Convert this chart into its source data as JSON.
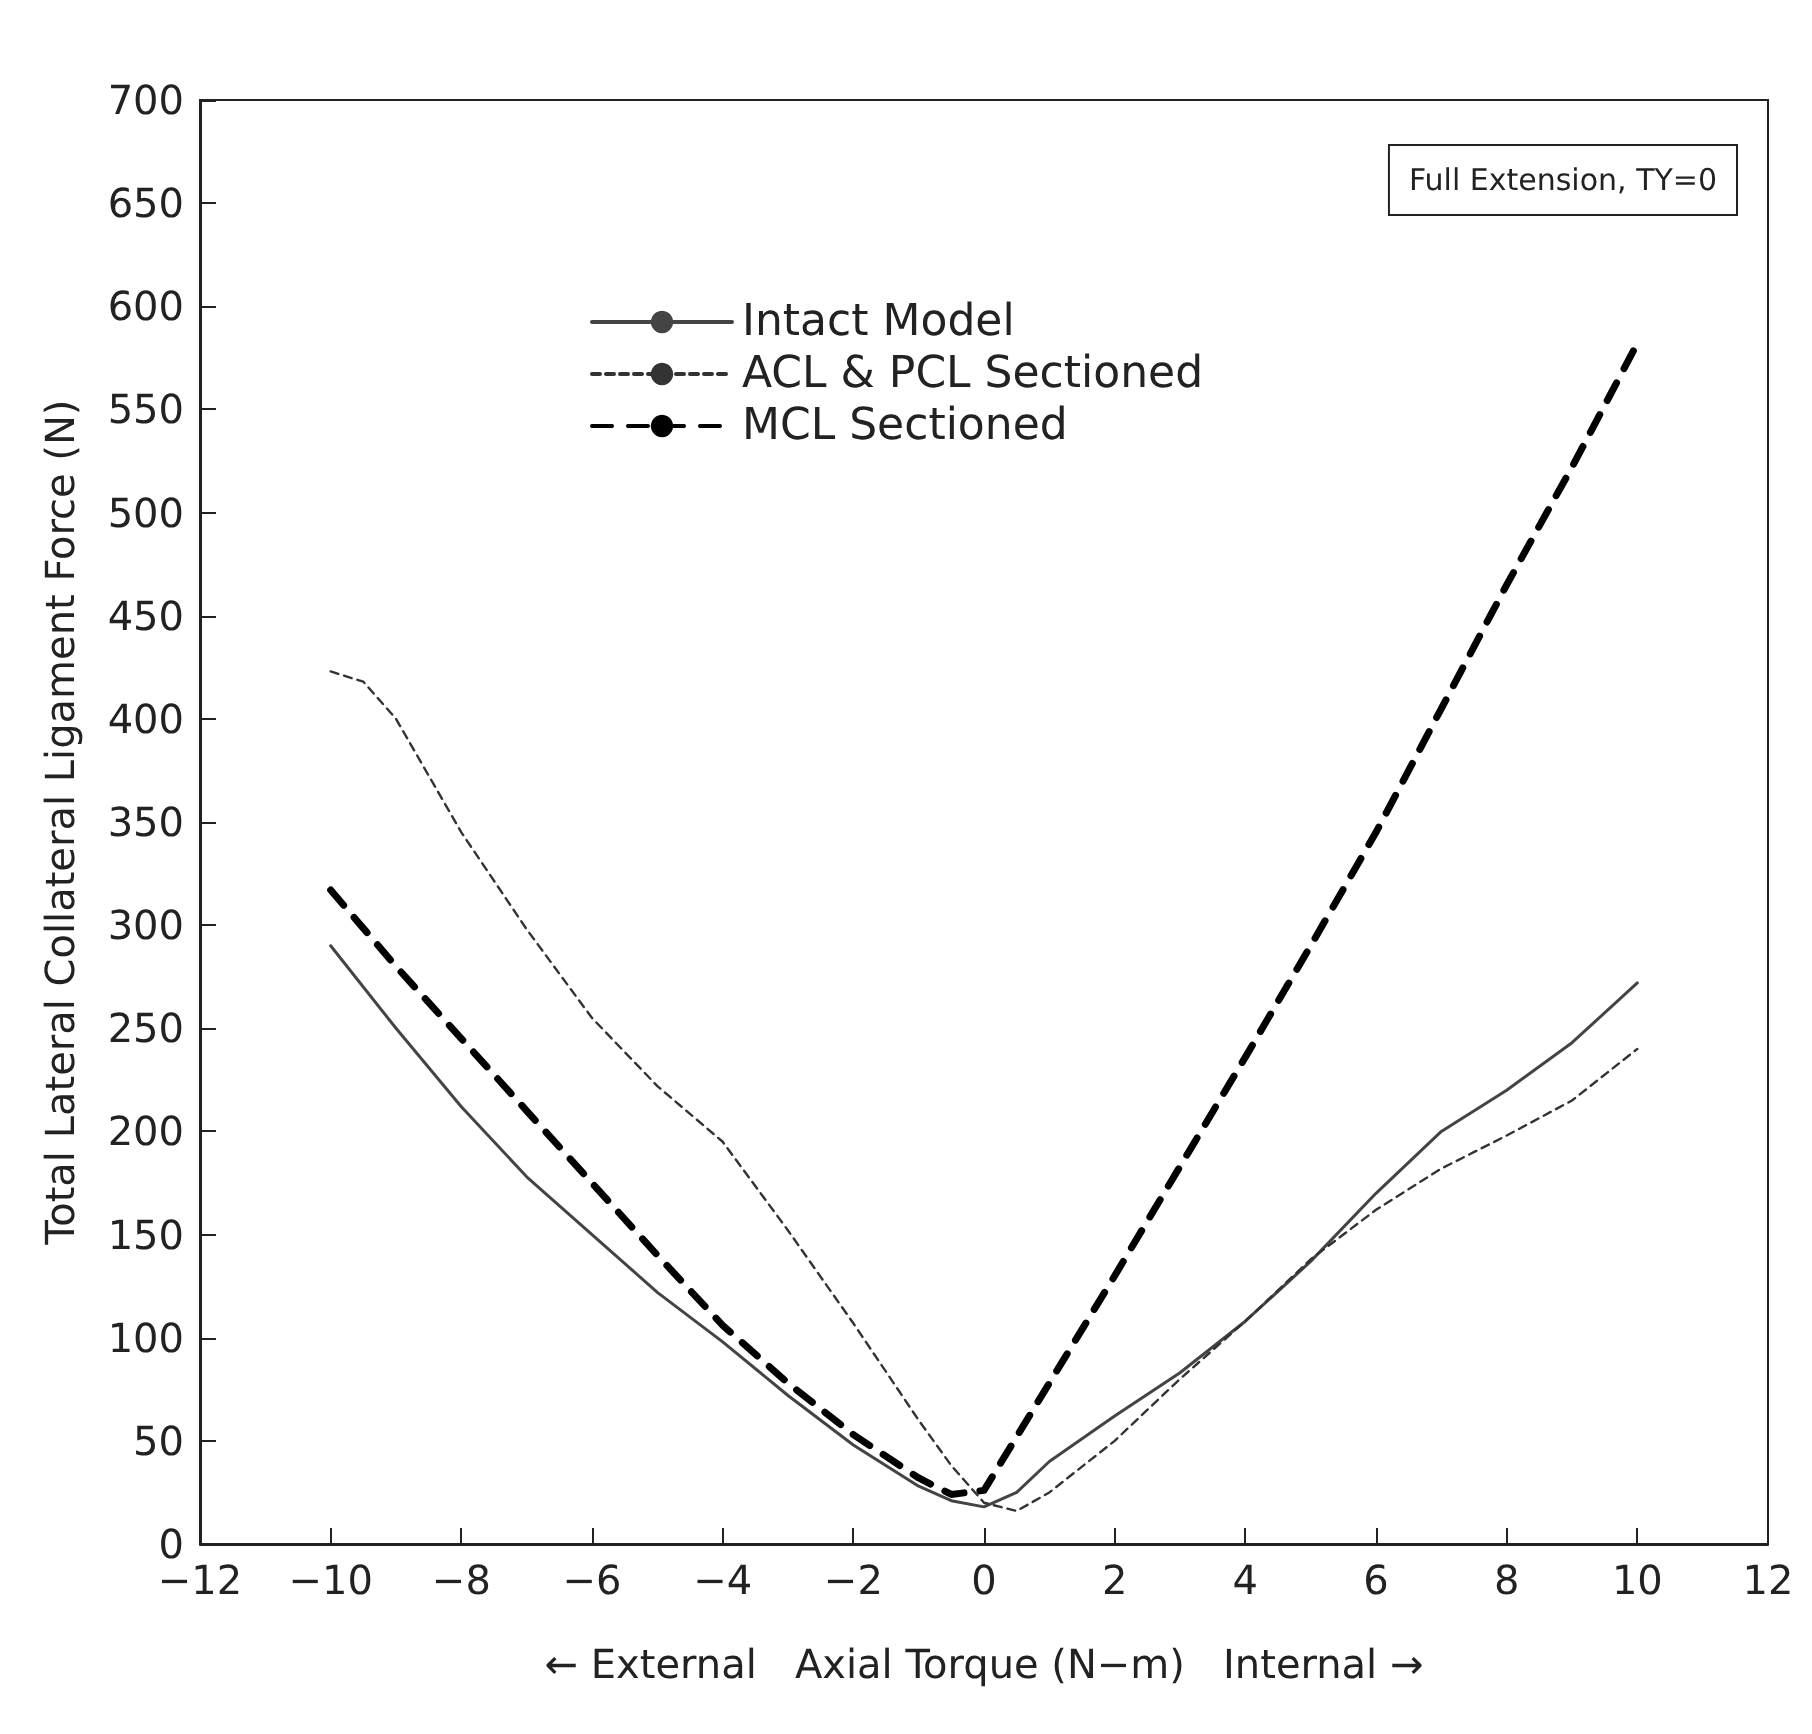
{
  "chart_data": {
    "type": "line",
    "xlabel": "← External   Axial Torque (N−m)   Internal →",
    "ylabel": "Total Lateral Collateral Ligament Force (N)",
    "annotations": [
      "Full Extension, TY=0"
    ],
    "xlim": [
      -12,
      12
    ],
    "xticks": [
      {
        "value": -12,
        "label": "−12"
      },
      {
        "value": -10,
        "label": "−10"
      },
      {
        "value": -8,
        "label": "−8"
      },
      {
        "value": -6,
        "label": "−6"
      },
      {
        "value": -4,
        "label": "−4"
      },
      {
        "value": -2,
        "label": "−2"
      },
      0,
      2,
      4,
      6,
      8,
      10,
      12
    ],
    "ylim": [
      0,
      700
    ],
    "yticks": [
      0,
      50,
      100,
      150,
      200,
      250,
      300,
      350,
      400,
      450,
      500,
      550,
      600,
      650,
      700
    ],
    "grid": false,
    "legend": "top",
    "marker": "none",
    "series": [
      {
        "name": "Intact Model",
        "color": "#444444",
        "line_style": "solid",
        "x": [
          -10,
          -9,
          -8,
          -7,
          -6,
          -5,
          -4,
          -3,
          -2,
          -1,
          -0.5,
          0,
          0.5,
          1,
          2,
          3,
          4,
          5,
          6,
          7,
          8,
          9,
          10
        ],
        "values": [
          290,
          250,
          212,
          178,
          150,
          122,
          98,
          72,
          48,
          28,
          21,
          18,
          25,
          40,
          62,
          83,
          108,
          137,
          170,
          200,
          220,
          243,
          272
        ]
      },
      {
        "name": "ACL & PCL Sectioned",
        "color": "#333333",
        "line_style": "dotted",
        "x": [
          -10,
          -9.5,
          -9,
          -8,
          -7,
          -6,
          -5,
          -4,
          -3,
          -2,
          -1,
          -0.5,
          0,
          0.5,
          1,
          2,
          3,
          4,
          5,
          6,
          7,
          8,
          9,
          10
        ],
        "values": [
          423,
          418,
          400,
          345,
          298,
          255,
          222,
          195,
          152,
          107,
          60,
          38,
          20,
          16,
          25,
          50,
          80,
          108,
          138,
          162,
          182,
          198,
          215,
          240
        ]
      },
      {
        "name": "MCL Sectioned",
        "color": "#000000",
        "line_style": "dashed",
        "x": [
          -10,
          -9,
          -8,
          -7,
          -6,
          -5,
          -4,
          -3,
          -2,
          -1,
          -0.5,
          0,
          1,
          2,
          3,
          4,
          5,
          6,
          7,
          8,
          9,
          10
        ],
        "values": [
          317,
          280,
          245,
          210,
          175,
          140,
          106,
          78,
          53,
          32,
          24,
          26,
          78,
          130,
          183,
          236,
          290,
          345,
          405,
          465,
          522,
          582
        ]
      }
    ]
  }
}
